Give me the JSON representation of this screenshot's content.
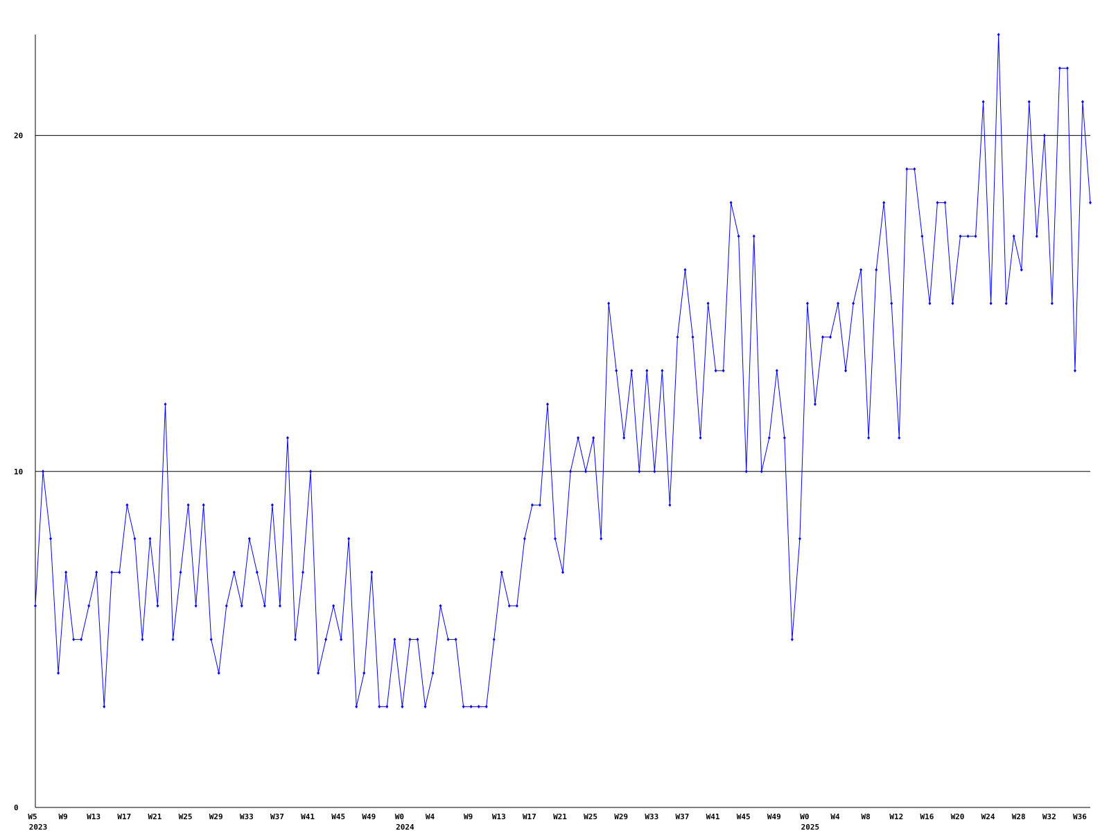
{
  "chart_data": {
    "type": "line",
    "categories": [
      "W5",
      null,
      null,
      null,
      "W9",
      null,
      null,
      null,
      "W13",
      null,
      null,
      null,
      "W17",
      null,
      null,
      null,
      "W21",
      null,
      null,
      null,
      "W25",
      null,
      null,
      null,
      "W29",
      null,
      null,
      null,
      "W33",
      null,
      null,
      null,
      "W37",
      null,
      null,
      null,
      "W41",
      null,
      null,
      null,
      "W45",
      null,
      null,
      null,
      "W49",
      null,
      null,
      null,
      "W0",
      null,
      null,
      null,
      "W4",
      null,
      null,
      null,
      null,
      "W9",
      null,
      null,
      null,
      "W13",
      null,
      null,
      null,
      "W17",
      null,
      null,
      null,
      "W21",
      null,
      null,
      null,
      "W25",
      null,
      null,
      null,
      "W29",
      null,
      null,
      null,
      "W33",
      null,
      null,
      null,
      "W37",
      null,
      null,
      null,
      "W41",
      null,
      null,
      null,
      "W45",
      null,
      null,
      null,
      "W49",
      null,
      null,
      null,
      "W0",
      null,
      null,
      null,
      "W4",
      null,
      null,
      null,
      "W8",
      null,
      null,
      null,
      "W12",
      null,
      null,
      null,
      "W16",
      null,
      null,
      null,
      "W20",
      null,
      null,
      null,
      "W24",
      null,
      null,
      null,
      "W28",
      null,
      null,
      null,
      "W32",
      null,
      null,
      null,
      "W36",
      null
    ],
    "years": [
      "2023",
      null,
      null,
      null,
      null,
      null,
      null,
      null,
      null,
      null,
      null,
      null,
      null,
      null,
      null,
      null,
      null,
      null,
      null,
      null,
      null,
      null,
      null,
      null,
      null,
      null,
      null,
      null,
      null,
      null,
      null,
      null,
      null,
      null,
      null,
      null,
      null,
      null,
      null,
      null,
      null,
      null,
      null,
      null,
      null,
      null,
      null,
      null,
      "2024",
      null,
      null,
      null,
      null,
      null,
      null,
      null,
      null,
      null,
      null,
      null,
      null,
      null,
      null,
      null,
      null,
      null,
      null,
      null,
      null,
      null,
      null,
      null,
      null,
      null,
      null,
      null,
      null,
      null,
      null,
      null,
      null,
      null,
      null,
      null,
      null,
      null,
      null,
      null,
      null,
      null,
      null,
      null,
      null,
      null,
      null,
      null,
      null,
      null,
      null,
      null,
      null,
      "2025",
      null,
      null,
      null,
      null,
      null,
      null,
      null,
      null,
      null,
      null,
      null,
      null,
      null,
      null,
      null,
      null,
      null,
      null,
      null,
      null,
      null,
      null,
      null,
      null,
      null,
      null,
      null,
      null,
      null,
      null,
      null,
      null,
      null,
      null,
      null,
      null,
      null
    ],
    "series": [
      {
        "color": "#0000ff",
        "values": [
          6,
          10,
          8,
          4,
          7,
          5,
          5,
          6,
          7,
          3,
          7,
          7,
          9,
          8,
          5,
          8,
          6,
          12,
          5,
          7,
          9,
          6,
          9,
          5,
          4,
          6,
          7,
          6,
          8,
          7,
          6,
          9,
          6,
          11,
          5,
          7,
          10,
          4,
          5,
          6,
          5,
          8,
          3,
          4,
          7,
          3,
          3,
          5,
          3,
          5,
          5,
          3,
          4,
          6,
          5,
          5,
          3,
          3,
          3,
          3,
          5,
          7,
          6,
          6,
          8,
          9,
          9,
          12,
          8,
          7,
          10,
          11,
          10,
          11,
          8,
          15,
          13,
          11,
          13,
          10,
          13,
          10,
          13,
          9,
          14,
          16,
          14,
          11,
          15,
          13,
          13,
          18,
          17,
          10,
          17,
          10,
          11,
          13,
          11,
          5,
          8,
          15,
          12,
          14,
          14,
          15,
          13,
          15,
          16,
          11,
          16,
          18,
          15,
          11,
          19,
          19,
          17,
          15,
          18,
          18,
          15,
          17,
          17,
          17,
          21,
          15,
          23,
          15,
          17,
          16,
          21,
          17,
          20,
          15,
          22,
          22,
          13,
          21,
          18
        ]
      }
    ],
    "ylim": [
      0,
      23
    ],
    "yticks": [
      0,
      10,
      20
    ],
    "grid": true
  }
}
